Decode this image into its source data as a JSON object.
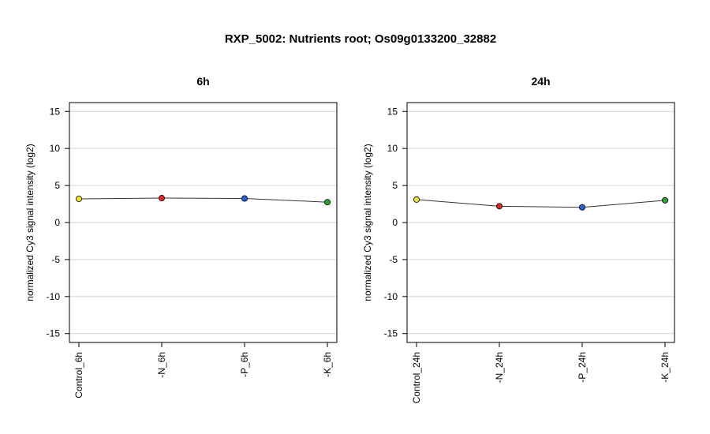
{
  "chart_data": {
    "title": "RXP_5002: Nutrients root; Os09g0133200_32882",
    "panels": [
      {
        "type": "line",
        "title": "6h",
        "ylabel": "normalized Cy3 signal intensity (log2)",
        "categories": [
          "Control_6h",
          "-N_6h",
          "-P_6h",
          "-K_6h"
        ],
        "values": [
          3.2,
          3.3,
          3.25,
          2.75
        ],
        "point_colors": [
          "#f2e227",
          "#e0271f",
          "#2461d9",
          "#2ea02e"
        ],
        "ylim": [
          -16.2,
          16.2
        ],
        "yticks": [
          -15,
          -10,
          -5,
          0,
          5,
          10,
          15
        ],
        "grid": true
      },
      {
        "type": "line",
        "title": "24h",
        "ylabel": "normalized Cy3 signal intensity (log2)",
        "categories": [
          "Control_24h",
          "-N_24h",
          "-P_24h",
          "-K_24h"
        ],
        "values": [
          3.1,
          2.2,
          2.05,
          3.0
        ],
        "point_colors": [
          "#f2e227",
          "#e0271f",
          "#2461d9",
          "#2ea02e"
        ],
        "ylim": [
          -16.2,
          16.2
        ],
        "yticks": [
          -15,
          -10,
          -5,
          0,
          5,
          10,
          15
        ],
        "grid": true
      }
    ]
  }
}
